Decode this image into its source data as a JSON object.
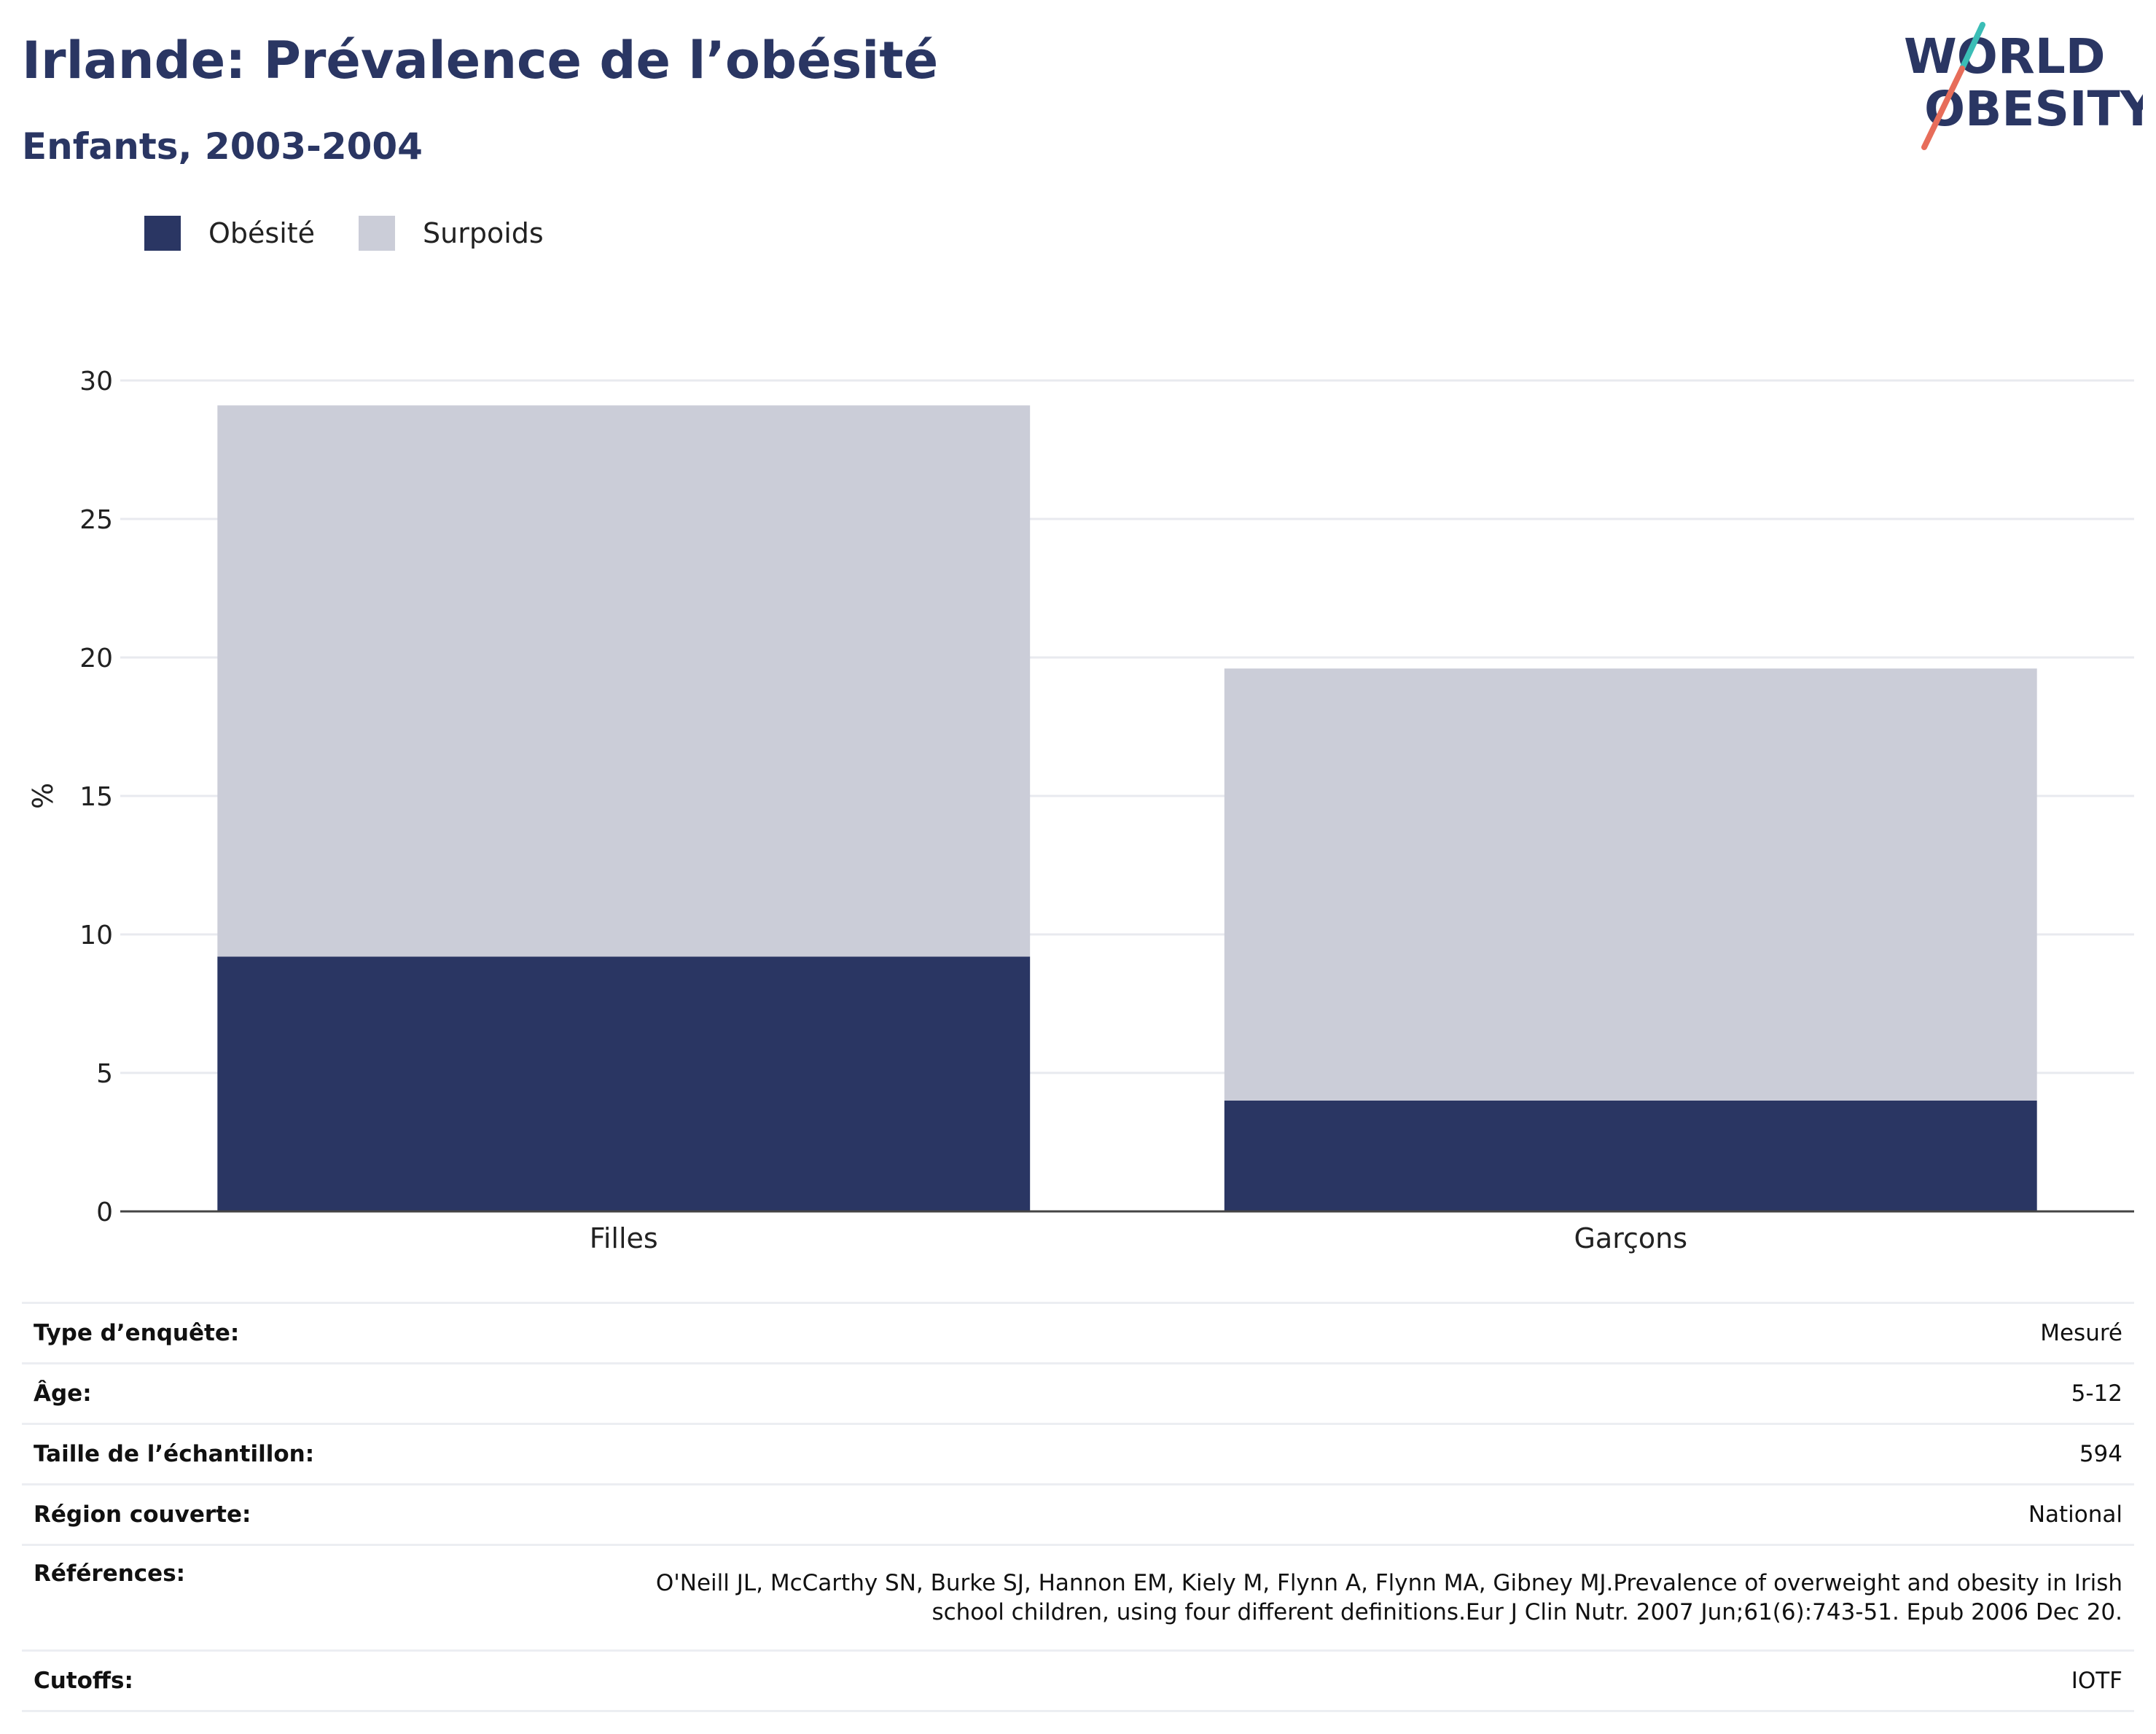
{
  "header": {
    "title": "Irlande: Prévalence de l’obésité",
    "subtitle": "Enfants, 2003-2004"
  },
  "logo": {
    "line1": "WORLD",
    "line2": "OBESITY"
  },
  "colors": {
    "obesite": "#2a3663",
    "surpoids": "#cbcdd8",
    "grid": "#e8eaef",
    "axis": "#444444",
    "text": "#222222"
  },
  "chart_data": {
    "type": "bar",
    "stacked": true,
    "categories": [
      "Filles",
      "Garçons"
    ],
    "series": [
      {
        "name": "Obésité",
        "values": [
          9.2,
          4.0
        ]
      },
      {
        "name": "Surpoids",
        "values": [
          19.9,
          15.6
        ]
      }
    ],
    "ylabel": "%",
    "xlabel": "",
    "ylim": [
      0,
      30
    ],
    "yticks": [
      "0",
      "5",
      "10",
      "15",
      "20",
      "25",
      "30"
    ],
    "grid": true,
    "legend_position": "top-left"
  },
  "info": [
    {
      "label": "Type d’enquête:",
      "value": "Mesuré"
    },
    {
      "label": "Âge:",
      "value": "5-12"
    },
    {
      "label": "Taille de l’échantillon:",
      "value": "594"
    },
    {
      "label": "Région couverte:",
      "value": "National"
    },
    {
      "label": "Références:",
      "value_line1": "O'Neill JL, McCarthy SN, Burke SJ, Hannon EM, Kiely M, Flynn A, Flynn MA, Gibney MJ.Prevalence of overweight and obesity in Irish",
      "value_line2": "school children, using four different definitions.Eur J Clin Nutr. 2007 Jun;61(6):743-51. Epub 2006 Dec 20."
    },
    {
      "label": "Cutoffs:",
      "value": "IOTF"
    }
  ]
}
